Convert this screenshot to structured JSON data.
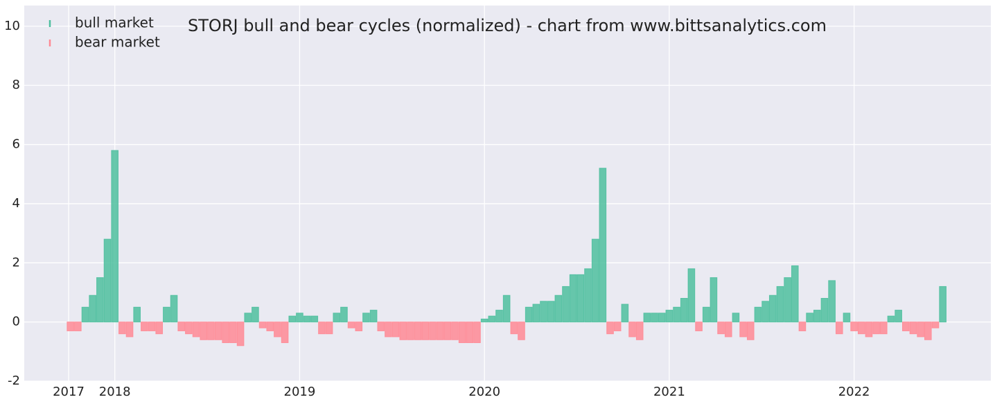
{
  "chart_data": {
    "type": "bar",
    "title": "STORJ bull and bear cycles (normalized)  - chart from www.bittsanalytics.com",
    "x": [
      2017.76,
      2017.8,
      2017.84,
      2017.88,
      2017.92,
      2017.96,
      2018.0,
      2018.04,
      2018.08,
      2018.12,
      2018.16,
      2018.2,
      2018.24,
      2018.28,
      2018.32,
      2018.36,
      2018.4,
      2018.44,
      2018.48,
      2018.52,
      2018.56,
      2018.6,
      2018.64,
      2018.68,
      2018.72,
      2018.76,
      2018.8,
      2018.84,
      2018.88,
      2018.92,
      2018.96,
      2019.0,
      2019.04,
      2019.08,
      2019.12,
      2019.16,
      2019.2,
      2019.24,
      2019.28,
      2019.32,
      2019.36,
      2019.4,
      2019.44,
      2019.48,
      2019.52,
      2019.56,
      2019.6,
      2019.64,
      2019.68,
      2019.72,
      2019.76,
      2019.8,
      2019.84,
      2019.88,
      2019.92,
      2019.96,
      2020.0,
      2020.04,
      2020.08,
      2020.12,
      2020.16,
      2020.2,
      2020.24,
      2020.28,
      2020.32,
      2020.36,
      2020.4,
      2020.44,
      2020.48,
      2020.52,
      2020.56,
      2020.6,
      2020.64,
      2020.68,
      2020.72,
      2020.76,
      2020.8,
      2020.84,
      2020.88,
      2020.92,
      2020.96,
      2021.0,
      2021.04,
      2021.08,
      2021.12,
      2021.16,
      2021.2,
      2021.24,
      2021.28,
      2021.32,
      2021.36,
      2021.4,
      2021.44,
      2021.48,
      2021.52,
      2021.56,
      2021.6,
      2021.64,
      2021.68,
      2021.72,
      2021.76,
      2021.8,
      2021.84,
      2021.88,
      2021.92,
      2021.96,
      2022.0,
      2022.04,
      2022.08,
      2022.12,
      2022.16,
      2022.2,
      2022.24,
      2022.28,
      2022.32,
      2022.36,
      2022.4,
      2022.44,
      2022.48
    ],
    "series": [
      {
        "name": "bull market",
        "color": "#4fbf9f",
        "values": [
          null,
          null,
          0.5,
          0.9,
          1.5,
          2.8,
          5.8,
          null,
          null,
          0.5,
          null,
          null,
          null,
          0.5,
          0.9,
          null,
          null,
          null,
          null,
          null,
          null,
          null,
          null,
          null,
          0.3,
          0.5,
          null,
          null,
          null,
          null,
          0.2,
          0.3,
          0.2,
          0.2,
          null,
          null,
          0.3,
          0.5,
          null,
          null,
          0.3,
          0.4,
          null,
          null,
          null,
          null,
          null,
          null,
          null,
          null,
          null,
          null,
          null,
          null,
          null,
          null,
          0.1,
          0.2,
          0.4,
          0.9,
          null,
          null,
          0.5,
          0.6,
          0.7,
          0.7,
          0.9,
          1.2,
          1.6,
          1.6,
          1.8,
          2.8,
          5.2,
          null,
          null,
          0.6,
          null,
          null,
          0.3,
          0.3,
          0.3,
          0.4,
          0.5,
          0.8,
          1.8,
          null,
          0.5,
          1.5,
          null,
          null,
          0.3,
          null,
          null,
          0.5,
          0.7,
          0.9,
          1.2,
          1.5,
          1.9,
          null,
          0.3,
          0.4,
          0.8,
          1.4,
          null,
          0.3,
          null,
          null,
          null,
          null,
          null,
          0.2,
          0.4,
          null,
          null,
          null,
          null,
          null,
          1.2
        ]
      },
      {
        "name": "bear market",
        "color": "#ff8a95",
        "values": [
          -0.3,
          -0.3,
          null,
          null,
          null,
          null,
          null,
          -0.4,
          -0.5,
          null,
          -0.3,
          -0.3,
          -0.4,
          null,
          null,
          -0.3,
          -0.4,
          -0.5,
          -0.6,
          -0.6,
          -0.6,
          -0.7,
          -0.7,
          -0.8,
          null,
          null,
          -0.2,
          -0.3,
          -0.5,
          -0.7,
          null,
          null,
          null,
          null,
          -0.4,
          -0.4,
          null,
          null,
          -0.2,
          -0.3,
          null,
          null,
          -0.3,
          -0.5,
          -0.5,
          -0.6,
          -0.6,
          -0.6,
          -0.6,
          -0.6,
          -0.6,
          -0.6,
          -0.6,
          -0.7,
          -0.7,
          -0.7,
          null,
          null,
          null,
          null,
          -0.4,
          -0.6,
          null,
          null,
          null,
          null,
          null,
          null,
          null,
          null,
          null,
          null,
          null,
          -0.4,
          -0.3,
          null,
          -0.5,
          -0.6,
          null,
          null,
          null,
          null,
          null,
          null,
          null,
          -0.3,
          null,
          null,
          -0.4,
          -0.5,
          null,
          -0.5,
          -0.6,
          null,
          null,
          null,
          null,
          null,
          null,
          -0.3,
          null,
          null,
          null,
          null,
          -0.4,
          null,
          -0.3,
          -0.4,
          -0.5,
          -0.4,
          -0.4,
          null,
          null,
          -0.3,
          -0.4,
          -0.5,
          -0.6,
          -0.2,
          null
        ]
      }
    ],
    "xlim": [
      2017.51,
      2022.74
    ],
    "xticks": [
      {
        "value": 2017.75,
        "label": "2017"
      },
      {
        "value": 2018,
        "label": "2018"
      },
      {
        "value": 2019,
        "label": "2019"
      },
      {
        "value": 2020,
        "label": "2020"
      },
      {
        "value": 2021,
        "label": "2021"
      },
      {
        "value": 2022,
        "label": "2022"
      }
    ],
    "ylim": [
      -2,
      10.7
    ],
    "yticks": [
      -2,
      0,
      2,
      4,
      6,
      8,
      10
    ],
    "grid": true,
    "legend": "upper left"
  }
}
